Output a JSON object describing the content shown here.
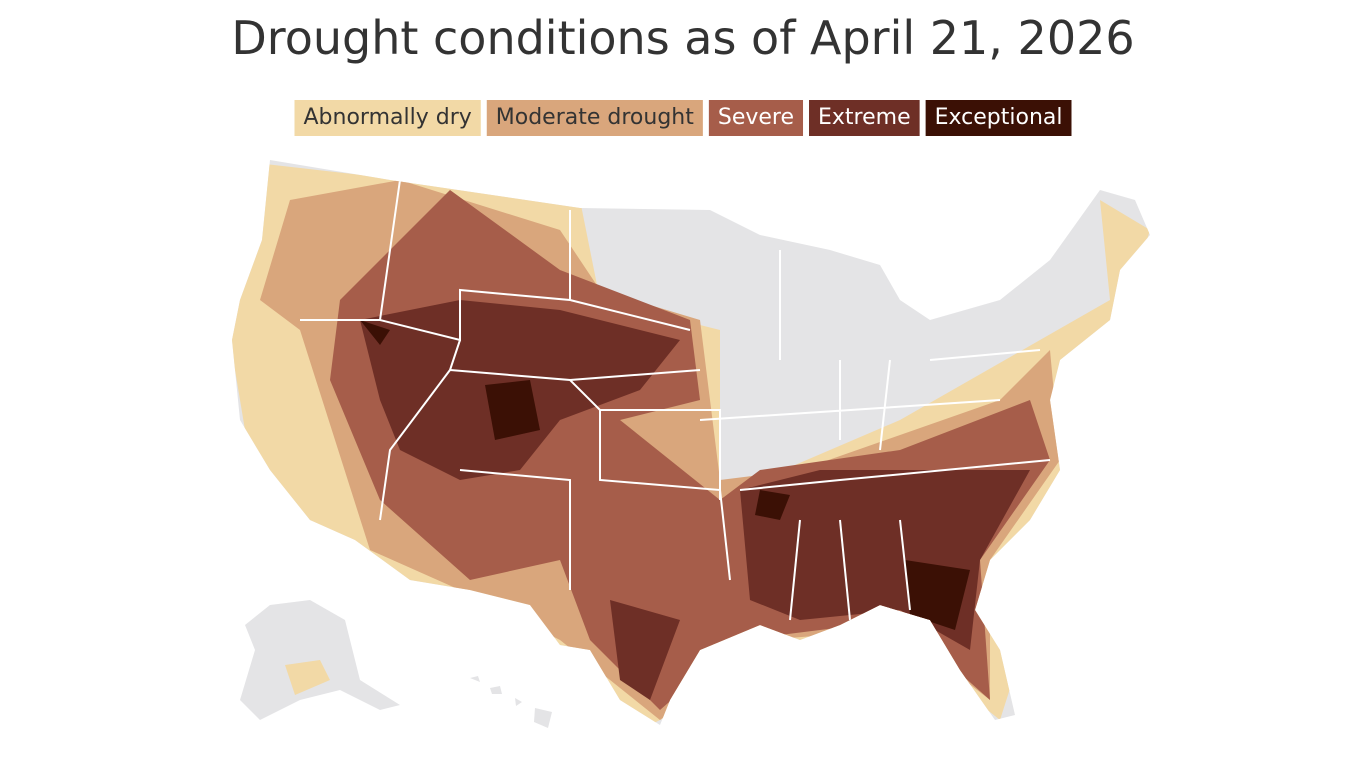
{
  "title": "Drought conditions as of April 21, 2026",
  "legend": {
    "items": [
      {
        "label": "Abnormally dry",
        "color": "#f2d9a6",
        "text_color": "#333333"
      },
      {
        "label": "Moderate drought",
        "color": "#d9a67c",
        "text_color": "#333333"
      },
      {
        "label": "Severe",
        "color": "#a65d4a",
        "text_color": "#ffffff"
      },
      {
        "label": "Extreme",
        "color": "#6e2f26",
        "text_color": "#ffffff"
      },
      {
        "label": "Exceptional",
        "color": "#3b1005",
        "text_color": "#ffffff"
      }
    ]
  }
}
